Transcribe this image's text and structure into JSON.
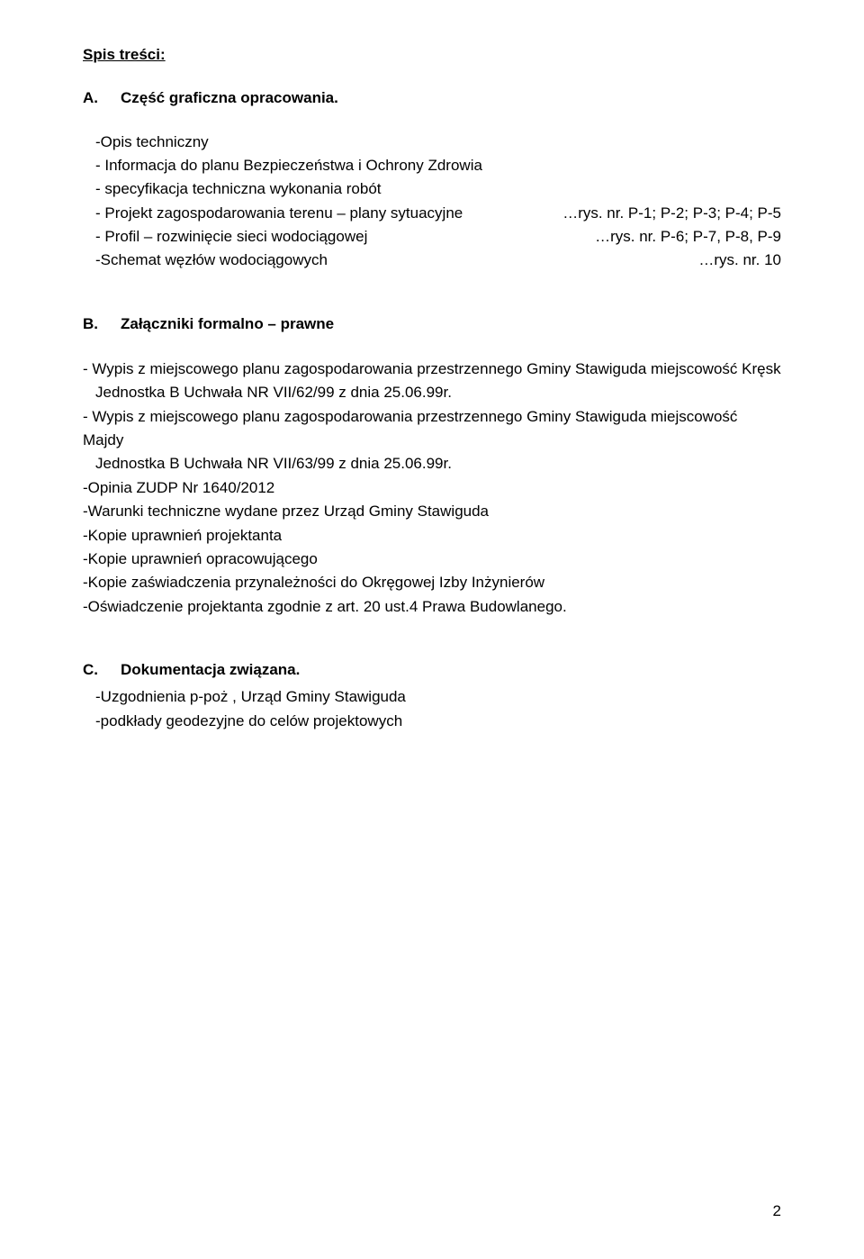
{
  "toc": {
    "heading_label": "Spis treści:"
  },
  "A": {
    "label": "A.",
    "title": "Część graficzna opracowania.",
    "items": [
      {
        "text": "-Opis techniczny",
        "ref": ""
      },
      {
        "text": "- Informacja do planu Bezpieczeństwa i Ochrony Zdrowia",
        "ref": ""
      },
      {
        "text": "- specyfikacja techniczna wykonania robót",
        "ref": ""
      },
      {
        "text": "- Projekt zagospodarowania terenu – plany sytuacyjne",
        "ref": "…rys. nr. P-1; P-2; P-3; P-4; P-5"
      },
      {
        "text": "- Profil – rozwinięcie sieci wodociągowej",
        "ref": "…rys. nr. P-6; P-7, P-8, P-9"
      },
      {
        "text": "-Schemat węzłów wodociągowych",
        "ref": "…rys. nr. 10"
      }
    ]
  },
  "B": {
    "label": "B.",
    "title": "Załączniki formalno – prawne",
    "items": [
      "- Wypis z miejscowego planu zagospodarowania przestrzennego Gminy Stawiguda miejscowość Kręsk",
      "Jednostka B Uchwała NR VII/62/99 z dnia 25.06.99r.",
      "- Wypis z miejscowego planu zagospodarowania przestrzennego Gminy Stawiguda miejscowość Majdy",
      "Jednostka B Uchwała NR VII/63/99 z dnia 25.06.99r.",
      "-Opinia ZUDP Nr 1640/2012",
      "-Warunki techniczne wydane przez Urząd Gminy Stawiguda",
      "-Kopie uprawnień projektanta",
      "-Kopie uprawnień opracowującego",
      "-Kopie zaświadczenia przynależności do Okręgowej Izby Inżynierów",
      "-Oświadczenie projektanta zgodnie z art. 20 ust.4 Prawa Budowlanego."
    ]
  },
  "C": {
    "label": "C.",
    "title": "Dokumentacja związana.",
    "items": [
      "-Uzgodnienia  p-poż , Urząd Gminy Stawiguda",
      "-podkłady geodezyjne do celów projektowych"
    ]
  },
  "page_number": "2"
}
